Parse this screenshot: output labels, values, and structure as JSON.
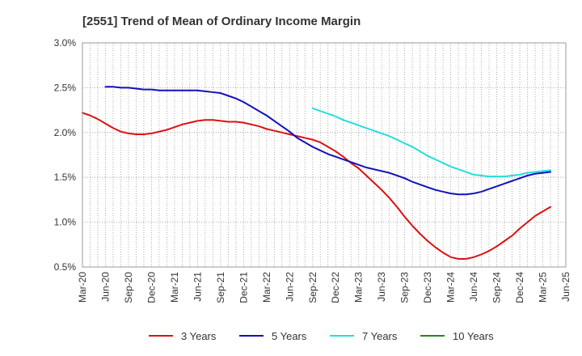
{
  "chart_data": {
    "type": "line",
    "title": "[2551]  Trend of Mean of Ordinary Income Margin",
    "xlabel": "",
    "ylabel": "",
    "x_tick_labels": [
      "Mar-20",
      "Jun-20",
      "Sep-20",
      "Dec-20",
      "Mar-21",
      "Jun-21",
      "Sep-21",
      "Dec-21",
      "Mar-22",
      "Jun-22",
      "Sep-22",
      "Dec-22",
      "Mar-23",
      "Jun-23",
      "Sep-23",
      "Dec-23",
      "Mar-24",
      "Jun-24",
      "Sep-24",
      "Dec-24",
      "Mar-25",
      "Jun-25"
    ],
    "y_ticks": [
      0.5,
      1.0,
      1.5,
      2.0,
      2.5,
      3.0
    ],
    "y_tick_labels": [
      "0.5%",
      "1.0%",
      "1.5%",
      "2.0%",
      "2.5%",
      "3.0%"
    ],
    "ylim": [
      0.5,
      3.0
    ],
    "grid": true,
    "legend_position": "bottom",
    "series": [
      {
        "name": "3 Years",
        "color": "#dd1111",
        "points": [
          [
            "Mar-20",
            2.22
          ],
          [
            "Apr-20",
            2.19
          ],
          [
            "May-20",
            2.15
          ],
          [
            "Jun-20",
            2.1
          ],
          [
            "Jul-20",
            2.05
          ],
          [
            "Aug-20",
            2.01
          ],
          [
            "Sep-20",
            1.99
          ],
          [
            "Oct-20",
            1.98
          ],
          [
            "Nov-20",
            1.98
          ],
          [
            "Dec-20",
            1.99
          ],
          [
            "Jan-21",
            2.01
          ],
          [
            "Feb-21",
            2.03
          ],
          [
            "Mar-21",
            2.06
          ],
          [
            "Apr-21",
            2.09
          ],
          [
            "May-21",
            2.11
          ],
          [
            "Jun-21",
            2.13
          ],
          [
            "Jul-21",
            2.14
          ],
          [
            "Aug-21",
            2.14
          ],
          [
            "Sep-21",
            2.13
          ],
          [
            "Oct-21",
            2.12
          ],
          [
            "Nov-21",
            2.12
          ],
          [
            "Dec-21",
            2.11
          ],
          [
            "Jan-22",
            2.09
          ],
          [
            "Feb-22",
            2.07
          ],
          [
            "Mar-22",
            2.04
          ],
          [
            "Apr-22",
            2.02
          ],
          [
            "May-22",
            2.0
          ],
          [
            "Jun-22",
            1.98
          ],
          [
            "Jul-22",
            1.96
          ],
          [
            "Aug-22",
            1.94
          ],
          [
            "Sep-22",
            1.92
          ],
          [
            "Oct-22",
            1.89
          ],
          [
            "Nov-22",
            1.84
          ],
          [
            "Dec-22",
            1.79
          ],
          [
            "Jan-23",
            1.73
          ],
          [
            "Feb-23",
            1.66
          ],
          [
            "Mar-23",
            1.6
          ],
          [
            "Apr-23",
            1.52
          ],
          [
            "May-23",
            1.44
          ],
          [
            "Jun-23",
            1.36
          ],
          [
            "Jul-23",
            1.27
          ],
          [
            "Aug-23",
            1.17
          ],
          [
            "Sep-23",
            1.06
          ],
          [
            "Oct-23",
            0.96
          ],
          [
            "Nov-23",
            0.87
          ],
          [
            "Dec-23",
            0.79
          ],
          [
            "Jan-24",
            0.72
          ],
          [
            "Feb-24",
            0.66
          ],
          [
            "Mar-24",
            0.61
          ],
          [
            "Apr-24",
            0.59
          ],
          [
            "May-24",
            0.59
          ],
          [
            "Jun-24",
            0.61
          ],
          [
            "Jul-24",
            0.64
          ],
          [
            "Aug-24",
            0.68
          ],
          [
            "Sep-24",
            0.73
          ],
          [
            "Oct-24",
            0.79
          ],
          [
            "Nov-24",
            0.85
          ],
          [
            "Dec-24",
            0.93
          ],
          [
            "Jan-25",
            1.0
          ],
          [
            "Feb-25",
            1.07
          ],
          [
            "Mar-25",
            1.12
          ],
          [
            "Apr-25",
            1.17
          ]
        ]
      },
      {
        "name": "5 Years",
        "color": "#1111bb",
        "points": [
          [
            "Jun-20",
            2.51
          ],
          [
            "Jul-20",
            2.51
          ],
          [
            "Aug-20",
            2.5
          ],
          [
            "Sep-20",
            2.5
          ],
          [
            "Oct-20",
            2.49
          ],
          [
            "Nov-20",
            2.48
          ],
          [
            "Dec-20",
            2.48
          ],
          [
            "Jan-21",
            2.47
          ],
          [
            "Feb-21",
            2.47
          ],
          [
            "Mar-21",
            2.47
          ],
          [
            "Apr-21",
            2.47
          ],
          [
            "May-21",
            2.47
          ],
          [
            "Jun-21",
            2.47
          ],
          [
            "Jul-21",
            2.46
          ],
          [
            "Aug-21",
            2.45
          ],
          [
            "Sep-21",
            2.44
          ],
          [
            "Oct-21",
            2.41
          ],
          [
            "Nov-21",
            2.38
          ],
          [
            "Dec-21",
            2.34
          ],
          [
            "Jan-22",
            2.29
          ],
          [
            "Feb-22",
            2.24
          ],
          [
            "Mar-22",
            2.19
          ],
          [
            "Apr-22",
            2.13
          ],
          [
            "May-22",
            2.07
          ],
          [
            "Jun-22",
            2.01
          ],
          [
            "Jul-22",
            1.94
          ],
          [
            "Aug-22",
            1.89
          ],
          [
            "Sep-22",
            1.84
          ],
          [
            "Oct-22",
            1.8
          ],
          [
            "Nov-22",
            1.76
          ],
          [
            "Dec-22",
            1.73
          ],
          [
            "Jan-23",
            1.7
          ],
          [
            "Feb-23",
            1.67
          ],
          [
            "Mar-23",
            1.64
          ],
          [
            "Apr-23",
            1.61
          ],
          [
            "May-23",
            1.59
          ],
          [
            "Jun-23",
            1.57
          ],
          [
            "Jul-23",
            1.55
          ],
          [
            "Aug-23",
            1.52
          ],
          [
            "Sep-23",
            1.49
          ],
          [
            "Oct-23",
            1.45
          ],
          [
            "Nov-23",
            1.42
          ],
          [
            "Dec-23",
            1.39
          ],
          [
            "Jan-24",
            1.36
          ],
          [
            "Feb-24",
            1.34
          ],
          [
            "Mar-24",
            1.32
          ],
          [
            "Apr-24",
            1.31
          ],
          [
            "May-24",
            1.31
          ],
          [
            "Jun-24",
            1.32
          ],
          [
            "Jul-24",
            1.34
          ],
          [
            "Aug-24",
            1.37
          ],
          [
            "Sep-24",
            1.4
          ],
          [
            "Oct-24",
            1.43
          ],
          [
            "Nov-24",
            1.46
          ],
          [
            "Dec-24",
            1.49
          ],
          [
            "Jan-25",
            1.52
          ],
          [
            "Feb-25",
            1.54
          ],
          [
            "Mar-25",
            1.55
          ],
          [
            "Apr-25",
            1.56
          ]
        ]
      },
      {
        "name": "7 Years",
        "color": "#22dddd",
        "points": [
          [
            "Sep-22",
            2.27
          ],
          [
            "Oct-22",
            2.24
          ],
          [
            "Nov-22",
            2.21
          ],
          [
            "Dec-22",
            2.18
          ],
          [
            "Jan-23",
            2.14
          ],
          [
            "Feb-23",
            2.11
          ],
          [
            "Mar-23",
            2.08
          ],
          [
            "Apr-23",
            2.05
          ],
          [
            "May-23",
            2.02
          ],
          [
            "Jun-23",
            1.99
          ],
          [
            "Jul-23",
            1.96
          ],
          [
            "Aug-23",
            1.92
          ],
          [
            "Sep-23",
            1.88
          ],
          [
            "Oct-23",
            1.84
          ],
          [
            "Nov-23",
            1.79
          ],
          [
            "Dec-23",
            1.74
          ],
          [
            "Jan-24",
            1.7
          ],
          [
            "Feb-24",
            1.66
          ],
          [
            "Mar-24",
            1.62
          ],
          [
            "Apr-24",
            1.59
          ],
          [
            "May-24",
            1.56
          ],
          [
            "Jun-24",
            1.53
          ],
          [
            "Jul-24",
            1.52
          ],
          [
            "Aug-24",
            1.51
          ],
          [
            "Sep-24",
            1.51
          ],
          [
            "Oct-24",
            1.51
          ],
          [
            "Nov-24",
            1.52
          ],
          [
            "Dec-24",
            1.53
          ],
          [
            "Jan-25",
            1.55
          ],
          [
            "Feb-25",
            1.56
          ],
          [
            "Mar-25",
            1.57
          ],
          [
            "Apr-25",
            1.58
          ]
        ]
      },
      {
        "name": "10 Years",
        "color": "#228822",
        "points": []
      }
    ]
  }
}
